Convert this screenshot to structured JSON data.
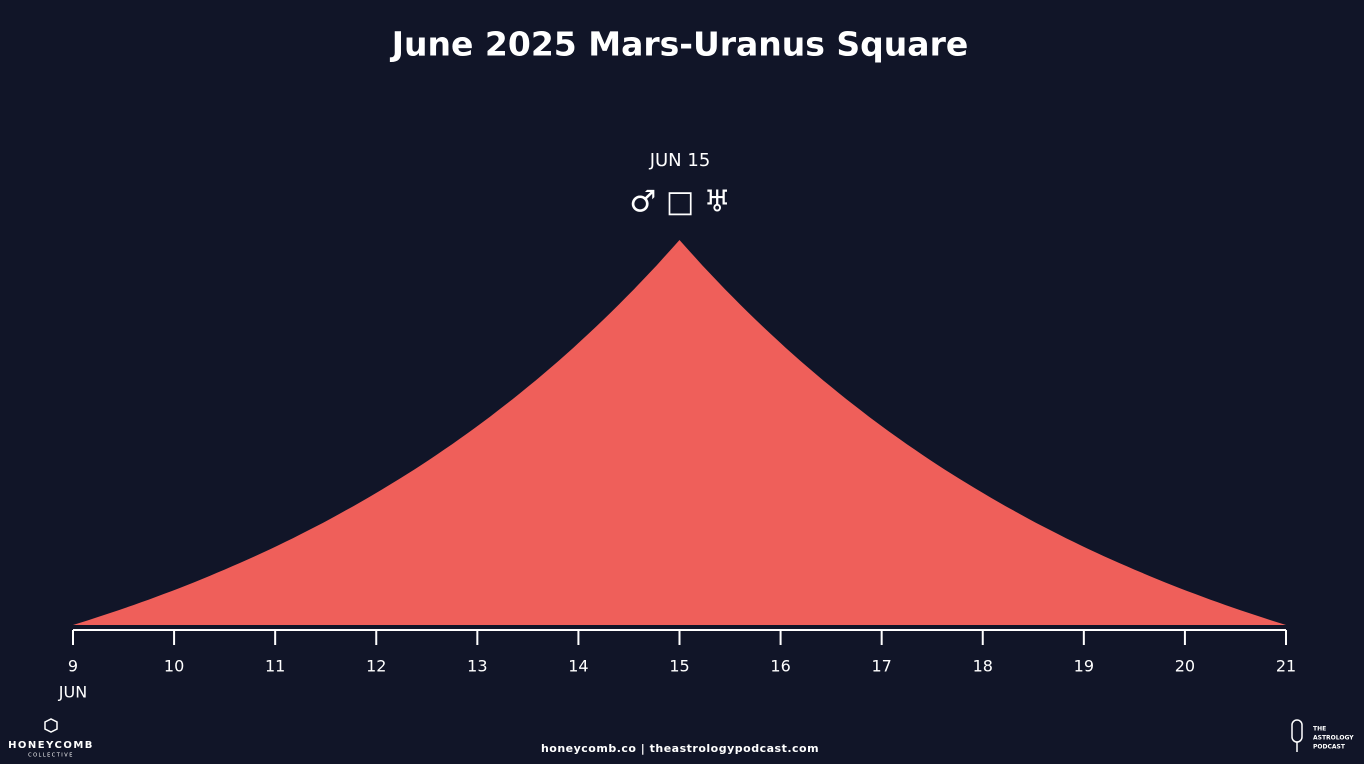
{
  "chart_data": {
    "type": "area",
    "title": "June 2025 Mars-Uranus Square",
    "annotation": "JUN 15",
    "aspect_symbols": "♂ □ ♅",
    "peak": 15,
    "color": "#ef5f5a",
    "xlim": [
      9,
      21
    ],
    "xticks": [
      9,
      10,
      11,
      12,
      13,
      14,
      15,
      16,
      17,
      18,
      19,
      20,
      21
    ],
    "x_label": "JUN"
  },
  "footer": {
    "links": "honeycomb.co | theastrologypodcast.com",
    "left_logo": {
      "name": "HONEYCOMB",
      "sub": "COLLECTIVE"
    },
    "right_logo": {
      "line1": "THE",
      "line2": "ASTROLOGY",
      "line3": "PODCAST"
    }
  }
}
